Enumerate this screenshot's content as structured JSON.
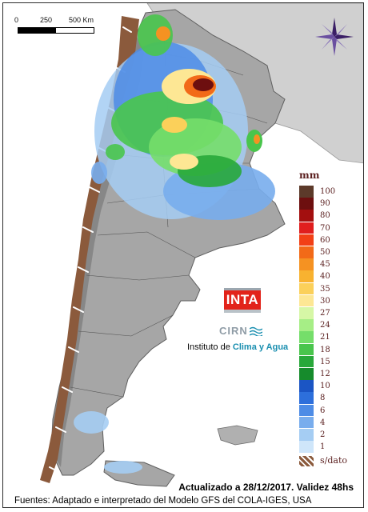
{
  "scale_bar": {
    "labels": [
      "0",
      "250",
      "500 Km"
    ]
  },
  "legend": {
    "unit": "mm",
    "classes": [
      {
        "label": "100",
        "color": "#5c3a2a"
      },
      {
        "label": "90",
        "color": "#6d0f0f"
      },
      {
        "label": "80",
        "color": "#a30f0f"
      },
      {
        "label": "70",
        "color": "#e01e1e"
      },
      {
        "label": "60",
        "color": "#f24016"
      },
      {
        "label": "50",
        "color": "#f26a18"
      },
      {
        "label": "45",
        "color": "#f59222"
      },
      {
        "label": "40",
        "color": "#f8b230"
      },
      {
        "label": "35",
        "color": "#fbd05a"
      },
      {
        "label": "30",
        "color": "#fde794"
      },
      {
        "label": "27",
        "color": "#d6f7a6"
      },
      {
        "label": "24",
        "color": "#a6ee86"
      },
      {
        "label": "21",
        "color": "#75de6a"
      },
      {
        "label": "18",
        "color": "#49c54c"
      },
      {
        "label": "15",
        "color": "#28a83a"
      },
      {
        "label": "12",
        "color": "#168b2c"
      },
      {
        "label": "10",
        "color": "#1b55c4"
      },
      {
        "label": "8",
        "color": "#2d6fdb"
      },
      {
        "label": "6",
        "color": "#4d8ce6"
      },
      {
        "label": "4",
        "color": "#78aded"
      },
      {
        "label": "2",
        "color": "#a5cdf3"
      },
      {
        "label": "1",
        "color": "#cfe6fa"
      }
    ],
    "no_data_label": "s/dato"
  },
  "logo": {
    "brand": "INTA",
    "unit": "CIRN",
    "institute_prefix": "Instituto de ",
    "institute_emphasis": "Clima y Agua"
  },
  "footer": {
    "update_text": "Actualizado a 28/12/2017. Validez 48hs",
    "sources_text": "Fuentes: Adaptado e interpretado del Modelo GFS del COLA-IGES, USA"
  },
  "colors": {
    "land": "#a9a9a9",
    "land_shadow": "#8e8e8e",
    "neighbor_land": "#c2c2c2",
    "ocean": "#ffffff",
    "nodata": "#8b5a3c",
    "compass": "#3b1f66"
  }
}
